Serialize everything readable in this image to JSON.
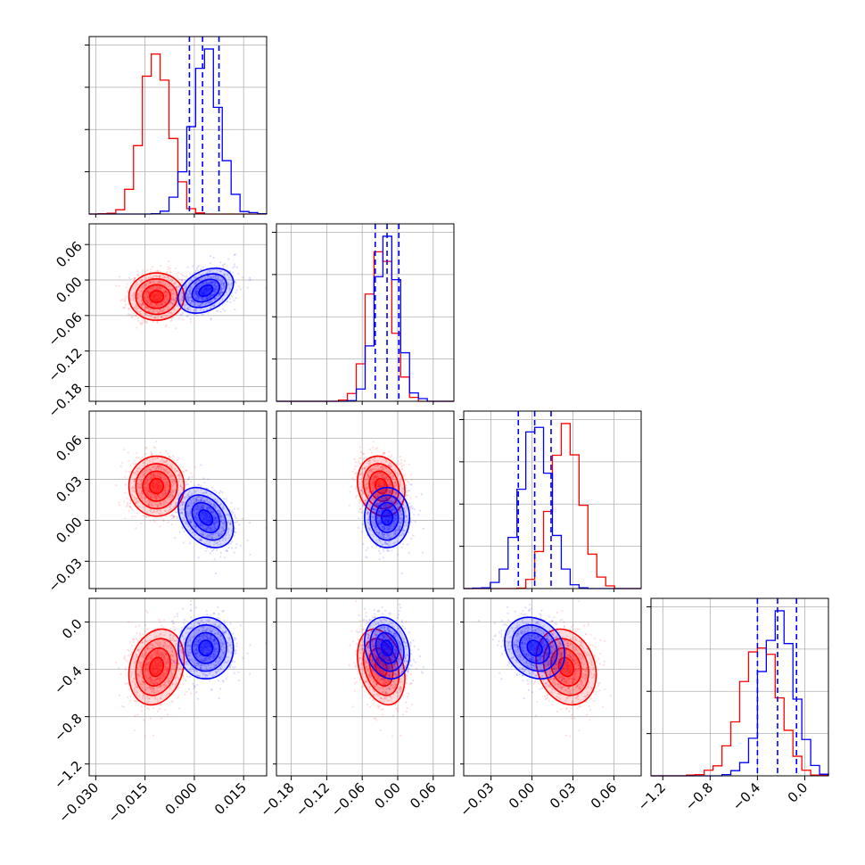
{
  "chart_data": {
    "type": "corner",
    "description_free": true,
    "colors": {
      "series_a": "#ff0000",
      "series_b": "#0000ff",
      "quantile_line": "#0000ff",
      "grid": "#b0b0b0",
      "frame": "#000000"
    },
    "parameters": [
      {
        "index": 0,
        "range": [
          -0.032,
          0.022
        ],
        "ticks": [
          -0.03,
          -0.015,
          0.0,
          0.015
        ],
        "tick_labels": [
          "−0.030",
          "−0.015",
          "0.000",
          "0.015"
        ]
      },
      {
        "index": 1,
        "range": [
          -0.205,
          0.095
        ],
        "ticks": [
          -0.18,
          -0.12,
          -0.06,
          0.0,
          0.06
        ],
        "tick_labels": [
          "−0.18",
          "−0.12",
          "−0.06",
          "0.00",
          "0.06"
        ]
      },
      {
        "index": 2,
        "range": [
          -0.05,
          0.08
        ],
        "ticks": [
          -0.03,
          0.0,
          0.03,
          0.06
        ],
        "tick_labels": [
          "−0.03",
          "0.00",
          "0.03",
          "0.06"
        ]
      },
      {
        "index": 3,
        "range": [
          -1.3,
          0.2
        ],
        "ticks": [
          -1.2,
          -0.8,
          -0.4,
          0.0
        ],
        "tick_labels": [
          "−1.2",
          "−0.8",
          "−0.4",
          "0.0"
        ]
      }
    ],
    "series": [
      {
        "name": "red",
        "color": "#ff0000",
        "means": [
          -0.0115,
          -0.028,
          0.025,
          -0.38
        ],
        "stds": [
          0.0042,
          0.02,
          0.011,
          0.16
        ],
        "correlations": [
          [
            0,
            3,
            0.2
          ],
          [
            1,
            3,
            -0.3
          ],
          [
            2,
            3,
            -0.2
          ],
          [
            1,
            2,
            -0.15
          ]
        ]
      },
      {
        "name": "blue",
        "color": "#0000ff",
        "means": [
          0.0035,
          -0.018,
          0.002,
          -0.22
        ],
        "stds": [
          0.0042,
          0.019,
          0.011,
          0.13
        ],
        "correlations": [
          [
            0,
            1,
            0.35
          ],
          [
            0,
            2,
            -0.35
          ],
          [
            2,
            3,
            -0.2
          ],
          [
            1,
            3,
            -0.2
          ]
        ]
      }
    ],
    "quantiles": [
      [
        -0.0015,
        0.0025,
        0.0075
      ],
      [
        -0.038,
        -0.018,
        0.002
      ],
      [
        -0.01,
        0.002,
        0.014
      ],
      [
        -0.4,
        -0.23,
        -0.07
      ]
    ]
  }
}
